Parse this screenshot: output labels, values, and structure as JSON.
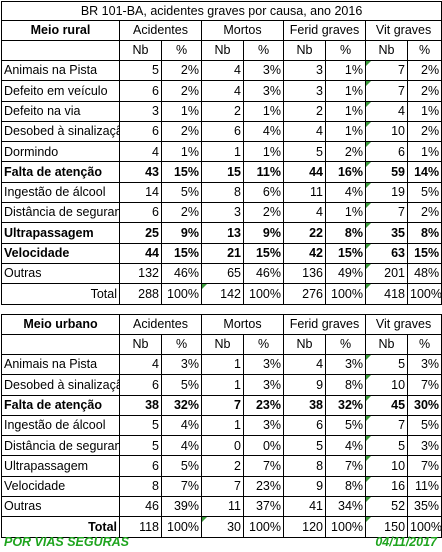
{
  "title": "BR 101-BA, acidentes graves por causa, ano 2016",
  "groups": [
    "Acidentes",
    "Mortos",
    "Ferid graves",
    "Vit graves"
  ],
  "subhead": {
    "nb": "Nb",
    "pct": "%"
  },
  "rural": {
    "header": "Meio rural",
    "rows": [
      {
        "label": "Animais na Pista",
        "bold": false,
        "vals": [
          "5",
          "2%",
          "4",
          "3%",
          "3",
          "1%",
          "7",
          "2%"
        ]
      },
      {
        "label": "Defeito em veículo",
        "bold": false,
        "vals": [
          "6",
          "2%",
          "4",
          "3%",
          "3",
          "1%",
          "7",
          "2%"
        ]
      },
      {
        "label": "Defeito na via",
        "bold": false,
        "vals": [
          "3",
          "1%",
          "2",
          "1%",
          "2",
          "1%",
          "4",
          "1%"
        ]
      },
      {
        "label": "Desobed à sinalização",
        "bold": false,
        "vals": [
          "6",
          "2%",
          "6",
          "4%",
          "4",
          "1%",
          "10",
          "2%"
        ]
      },
      {
        "label": "Dormindo",
        "bold": false,
        "vals": [
          "4",
          "1%",
          "1",
          "1%",
          "5",
          "2%",
          "6",
          "1%"
        ]
      },
      {
        "label": "Falta de atenção",
        "bold": true,
        "vals": [
          "43",
          "15%",
          "15",
          "11%",
          "44",
          "16%",
          "59",
          "14%"
        ]
      },
      {
        "label": "Ingestão de álcool",
        "bold": false,
        "vals": [
          "14",
          "5%",
          "8",
          "6%",
          "11",
          "4%",
          "19",
          "5%"
        ]
      },
      {
        "label": "Distância de segurança",
        "bold": false,
        "vals": [
          "6",
          "2%",
          "3",
          "2%",
          "4",
          "1%",
          "7",
          "2%"
        ]
      },
      {
        "label": "Ultrapassagem",
        "bold": true,
        "vals": [
          "25",
          "9%",
          "13",
          "9%",
          "22",
          "8%",
          "35",
          "8%"
        ]
      },
      {
        "label": "Velocidade",
        "bold": true,
        "vals": [
          "44",
          "15%",
          "21",
          "15%",
          "42",
          "15%",
          "63",
          "15%"
        ]
      },
      {
        "label": "Outras",
        "bold": false,
        "vals": [
          "132",
          "46%",
          "65",
          "46%",
          "136",
          "49%",
          "201",
          "48%"
        ]
      }
    ],
    "total": {
      "label": "Total",
      "vals": [
        "288",
        "100%",
        "142",
        "100%",
        "276",
        "100%",
        "418",
        "100%"
      ]
    }
  },
  "urban": {
    "header": "Meio urbano",
    "rows": [
      {
        "label": "Animais na Pista",
        "bold": false,
        "vals": [
          "4",
          "3%",
          "1",
          "3%",
          "4",
          "3%",
          "5",
          "3%"
        ]
      },
      {
        "label": "Desobed à sinalização",
        "bold": false,
        "vals": [
          "6",
          "5%",
          "1",
          "3%",
          "9",
          "8%",
          "10",
          "7%"
        ]
      },
      {
        "label": "Falta de atenção",
        "bold": true,
        "vals": [
          "38",
          "32%",
          "7",
          "23%",
          "38",
          "32%",
          "45",
          "30%"
        ]
      },
      {
        "label": "Ingestão de álcool",
        "bold": false,
        "vals": [
          "5",
          "4%",
          "1",
          "3%",
          "6",
          "5%",
          "7",
          "5%"
        ]
      },
      {
        "label": "Distância de segurança",
        "bold": false,
        "vals": [
          "5",
          "4%",
          "0",
          "0%",
          "5",
          "4%",
          "5",
          "3%"
        ]
      },
      {
        "label": "Ultrapassagem",
        "bold": false,
        "vals": [
          "6",
          "5%",
          "2",
          "7%",
          "8",
          "7%",
          "10",
          "7%"
        ]
      },
      {
        "label": "Velocidade",
        "bold": false,
        "vals": [
          "8",
          "7%",
          "7",
          "23%",
          "9",
          "8%",
          "16",
          "11%"
        ]
      },
      {
        "label": "Outras",
        "bold": false,
        "vals": [
          "46",
          "39%",
          "11",
          "37%",
          "41",
          "34%",
          "52",
          "35%"
        ]
      }
    ],
    "total": {
      "label": "Total",
      "vals": [
        "118",
        "100%",
        "30",
        "100%",
        "120",
        "100%",
        "150",
        "100%"
      ]
    }
  },
  "footer": {
    "left": "POR VIAS SEGURAS",
    "right": "04/11/2017"
  },
  "colors": {
    "footer_text": "#1fa51f",
    "corner_marker": "#3a9b3a"
  }
}
